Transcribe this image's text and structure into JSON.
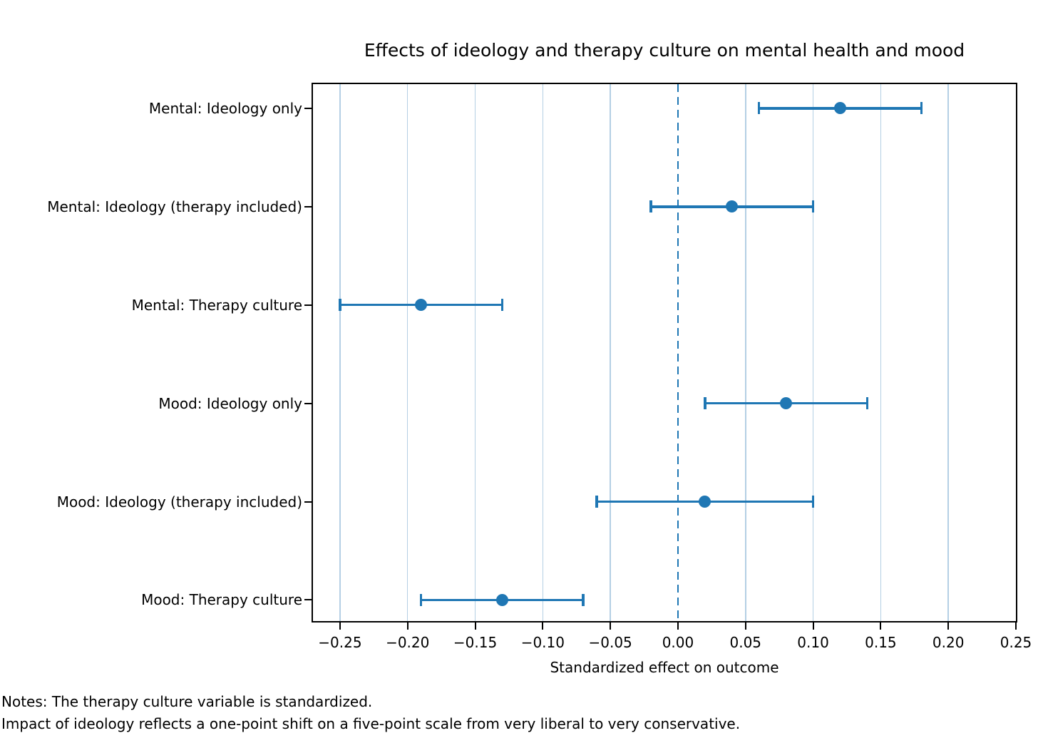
{
  "colors": {
    "accent": "#1f77b4",
    "grid": "#b4cfe4",
    "spine": "#000000",
    "background": "#ffffff"
  },
  "notes": {
    "line1": "Notes: The therapy culture variable is standardized.",
    "line2": "Impact of ideology reflects a one-point shift on a five-point scale from very liberal to very conservative."
  },
  "chart_data": {
    "type": "scatter",
    "variant": "horizontal-errorbar-dot-plot",
    "title": "Effects of ideology and therapy culture on mental health and mood",
    "xlabel": "Standardized effect on outcome",
    "ylabel": "",
    "categories": [
      "Mental: Ideology only",
      "Mental: Ideology (therapy included)",
      "Mental: Therapy culture",
      "Mood: Ideology only",
      "Mood: Ideology (therapy included)",
      "Mood: Therapy culture"
    ],
    "estimates": [
      0.12,
      0.04,
      -0.19,
      0.08,
      0.02,
      -0.13
    ],
    "ci_low": [
      0.06,
      -0.02,
      -0.25,
      0.02,
      -0.06,
      -0.19
    ],
    "ci_high": [
      0.18,
      0.1,
      -0.13,
      0.14,
      0.1,
      -0.07
    ],
    "xlim": [
      -0.27,
      0.25
    ],
    "xticks": [
      -0.25,
      -0.2,
      -0.15,
      -0.1,
      -0.05,
      0.0,
      0.05,
      0.1,
      0.15,
      0.2,
      0.25
    ],
    "xtick_labels": [
      "−0.25",
      "−0.20",
      "−0.15",
      "−0.10",
      "−0.05",
      "0.00",
      "0.05",
      "0.10",
      "0.15",
      "0.20",
      "0.25"
    ],
    "zero_line": 0.0,
    "grid": true,
    "legend": null
  }
}
